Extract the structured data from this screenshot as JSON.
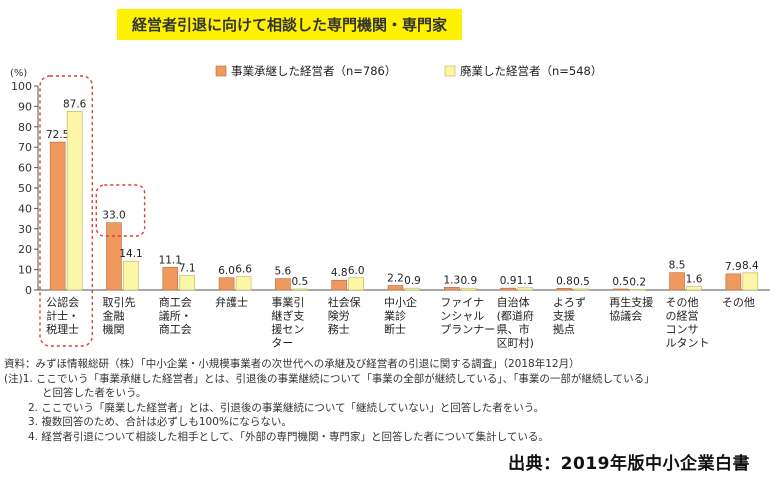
{
  "title": "経営者引退に向けて相談した専門機関・専門家",
  "chart_data": {
    "type": "bar",
    "yunit": "(%)",
    "ylim": [
      0,
      100
    ],
    "yticks": [
      0,
      10,
      20,
      30,
      40,
      50,
      60,
      70,
      80,
      90,
      100
    ],
    "categories": [
      [
        "公認会",
        "計士・",
        "税理士"
      ],
      [
        "取引先",
        "金融",
        "機関"
      ],
      [
        "商工会",
        "議所・",
        "商工会"
      ],
      [
        "弁護士"
      ],
      [
        "事業引",
        "継ぎ支",
        "援セン",
        "ター"
      ],
      [
        "社会保",
        "険労",
        "務士"
      ],
      [
        "中小企",
        "業診",
        "断士"
      ],
      [
        "ファイナ",
        "ンシャル",
        "プランナー"
      ],
      [
        "自治体",
        "(都道府",
        "県、市",
        "区町村)"
      ],
      [
        "よろず",
        "支援",
        "拠点"
      ],
      [
        "再生支援",
        "協議会"
      ],
      [
        "その他",
        "の経営",
        "コンサ",
        "ルタント"
      ],
      [
        "その他"
      ]
    ],
    "series": [
      {
        "name": "事業承継した経営者（n=786）",
        "color": "#f0995e",
        "border": "#b86a3a",
        "values": [
          72.5,
          33.0,
          11.1,
          6.0,
          5.6,
          4.8,
          2.2,
          1.3,
          0.9,
          0.8,
          0.5,
          8.5,
          7.9
        ],
        "labels": [
          "72.5",
          "33.0",
          "11.1",
          "6.0",
          "5.6",
          "4.8",
          "2.2",
          "1.3",
          "0.9",
          "0.8",
          "0.5",
          "8.5",
          "7.9"
        ]
      },
      {
        "name": "廃業した経営者（n=548）",
        "color": "#fbf7a6",
        "border": "#b8b25a",
        "values": [
          87.6,
          14.1,
          7.1,
          6.6,
          0.5,
          6.0,
          0.9,
          0.9,
          1.1,
          0.5,
          0.2,
          1.6,
          8.4
        ],
        "labels": [
          "87.6",
          "14.1",
          "7.1",
          "6.6",
          "0.5",
          "6.0",
          "0.9",
          "0.9",
          "1.1",
          "0.5",
          "0.2",
          "1.6",
          "8.4"
        ]
      }
    ],
    "legend_position": "top-right",
    "grid": false
  },
  "notes": [
    "資料：みずほ情報総研（株）「中小企業・小規模事業者の次世代への承継及び経営者の引退に関する調査」（2018年12月）",
    "(注)1. ここでいう「事業承継した経営者」とは、引退後の事業継続について「事業の全部が継続している」、「事業の一部が継続している」",
    "と回答した者をいう。",
    "2. ここでいう「廃業した経営者」とは、引退後の事業継続について「継続していない」と回答した者をいう。",
    "3. 複数回答のため、合計は必ずしも100%にならない。",
    "4. 経営者引退について相談した相手として、「外部の専門機関・専門家」と回答した者について集計している。"
  ],
  "source": "出典：2019年版中小企業白書"
}
